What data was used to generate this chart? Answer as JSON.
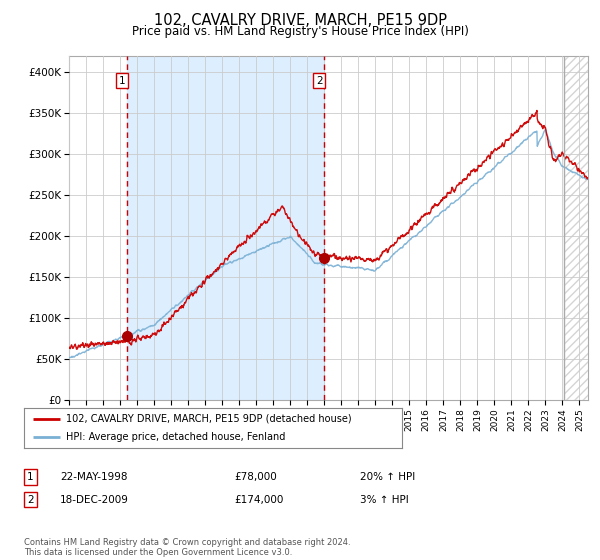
{
  "title": "102, CAVALRY DRIVE, MARCH, PE15 9DP",
  "subtitle": "Price paid vs. HM Land Registry's House Price Index (HPI)",
  "title_fontsize": 10.5,
  "subtitle_fontsize": 8.5,
  "xlim": [
    1995.0,
    2025.5
  ],
  "ylim": [
    0,
    420000
  ],
  "yticks": [
    0,
    50000,
    100000,
    150000,
    200000,
    250000,
    300000,
    350000,
    400000
  ],
  "ytick_labels": [
    "£0",
    "£50K",
    "£100K",
    "£150K",
    "£200K",
    "£250K",
    "£300K",
    "£350K",
    "£400K"
  ],
  "purchase1_date": 1998.38,
  "purchase1_price": 78000,
  "purchase1_label": "1",
  "purchase2_date": 2009.96,
  "purchase2_price": 174000,
  "purchase2_label": "2",
  "shaded_region_start": 1998.38,
  "shaded_region_end": 2009.96,
  "red_line_color": "#cc0000",
  "blue_line_color": "#7ab0d4",
  "shaded_color": "#ddeeff",
  "vline_color": "#cc0000",
  "dot_color": "#aa0000",
  "grid_color": "#cccccc",
  "bg_color": "#ffffff",
  "legend1_text": "102, CAVALRY DRIVE, MARCH, PE15 9DP (detached house)",
  "legend2_text": "HPI: Average price, detached house, Fenland",
  "table_row1": [
    "1",
    "22-MAY-1998",
    "£78,000",
    "20% ↑ HPI"
  ],
  "table_row2": [
    "2",
    "18-DEC-2009",
    "£174,000",
    "3% ↑ HPI"
  ],
  "footer": "Contains HM Land Registry data © Crown copyright and database right 2024.\nThis data is licensed under the Open Government Licence v3.0.",
  "hatch_region_start": 2024.08,
  "hatch_region_end": 2025.5
}
